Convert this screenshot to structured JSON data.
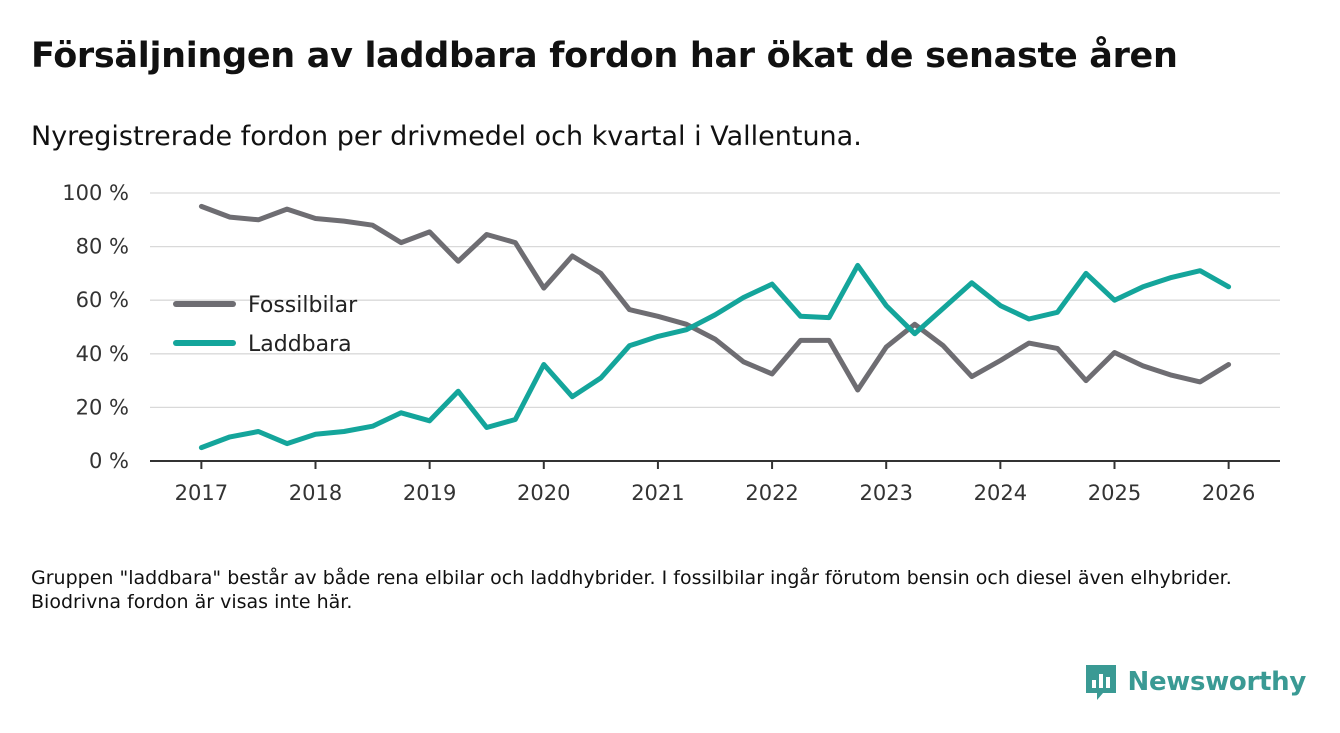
{
  "title": "Försäljningen av laddbara fordon har ökat de senaste åren",
  "subtitle": "Nyregistrerade fordon per drivmedel och kvartal i Vallentuna.",
  "footnote": "Gruppen \"laddbara\" består av både rena elbilar och laddhybrider. I fossilbilar ingår förutom bensin och diesel även elhybrider. Biodrivna fordon är visas inte här.",
  "brand": {
    "name": "Newsworthy",
    "icon": "newsworthy-logo-icon",
    "color": "#3a9a94"
  },
  "chart_data": {
    "type": "line",
    "title": "Försäljningen av laddbara fordon har ökat de senaste åren",
    "xlabel": "",
    "ylabel": "",
    "x": [
      2017,
      2017.25,
      2017.5,
      2017.75,
      2018,
      2018.25,
      2018.5,
      2018.75,
      2019,
      2019.25,
      2019.5,
      2019.75,
      2020,
      2020.25,
      2020.5,
      2020.75,
      2021,
      2021.25,
      2021.5,
      2021.75,
      2022,
      2022.25,
      2022.5,
      2022.75,
      2023,
      2023.25,
      2023.5,
      2023.75,
      2024,
      2024.25,
      2024.5,
      2024.75,
      2025,
      2025.25,
      2025.5,
      2025.75,
      2026
    ],
    "xlim": [
      2016.55,
      2026.45
    ],
    "ylim": [
      0,
      100
    ],
    "xticks": [
      2017,
      2018,
      2019,
      2020,
      2021,
      2022,
      2023,
      2024,
      2025,
      2026
    ],
    "xtick_labels": [
      "2017",
      "2018",
      "2019",
      "2020",
      "2021",
      "2022",
      "2023",
      "2024",
      "2025",
      "2026"
    ],
    "yticks": [
      0,
      20,
      40,
      60,
      80,
      100
    ],
    "ytick_labels": [
      "0 %",
      "20 %",
      "40 %",
      "60 %",
      "80 %",
      "100 %"
    ],
    "grid": true,
    "legend_position": "left",
    "series": [
      {
        "name": "Fossilbilar",
        "color": "#6e6d72",
        "values": [
          95,
          91,
          90,
          94,
          90.5,
          89.5,
          88,
          81.5,
          85.5,
          74.5,
          84.5,
          81.5,
          64.5,
          76.5,
          70,
          56.5,
          54,
          51,
          45.5,
          37,
          32.5,
          45,
          45,
          26.5,
          42.5,
          51,
          43,
          31.5,
          37.5,
          44,
          42,
          30,
          40.5,
          35.5,
          32,
          29.5,
          36
        ]
      },
      {
        "name": "Laddbara",
        "color": "#14a59b",
        "values": [
          5,
          9,
          11,
          6.5,
          10,
          11,
          13,
          18,
          15,
          26,
          12.5,
          15.5,
          36,
          24,
          31,
          43,
          46.5,
          49,
          54.5,
          61,
          66,
          54,
          53.5,
          73,
          58,
          47.5,
          57,
          66.5,
          58,
          53,
          55.5,
          70,
          60,
          65,
          68.5,
          71,
          65
        ]
      }
    ]
  }
}
